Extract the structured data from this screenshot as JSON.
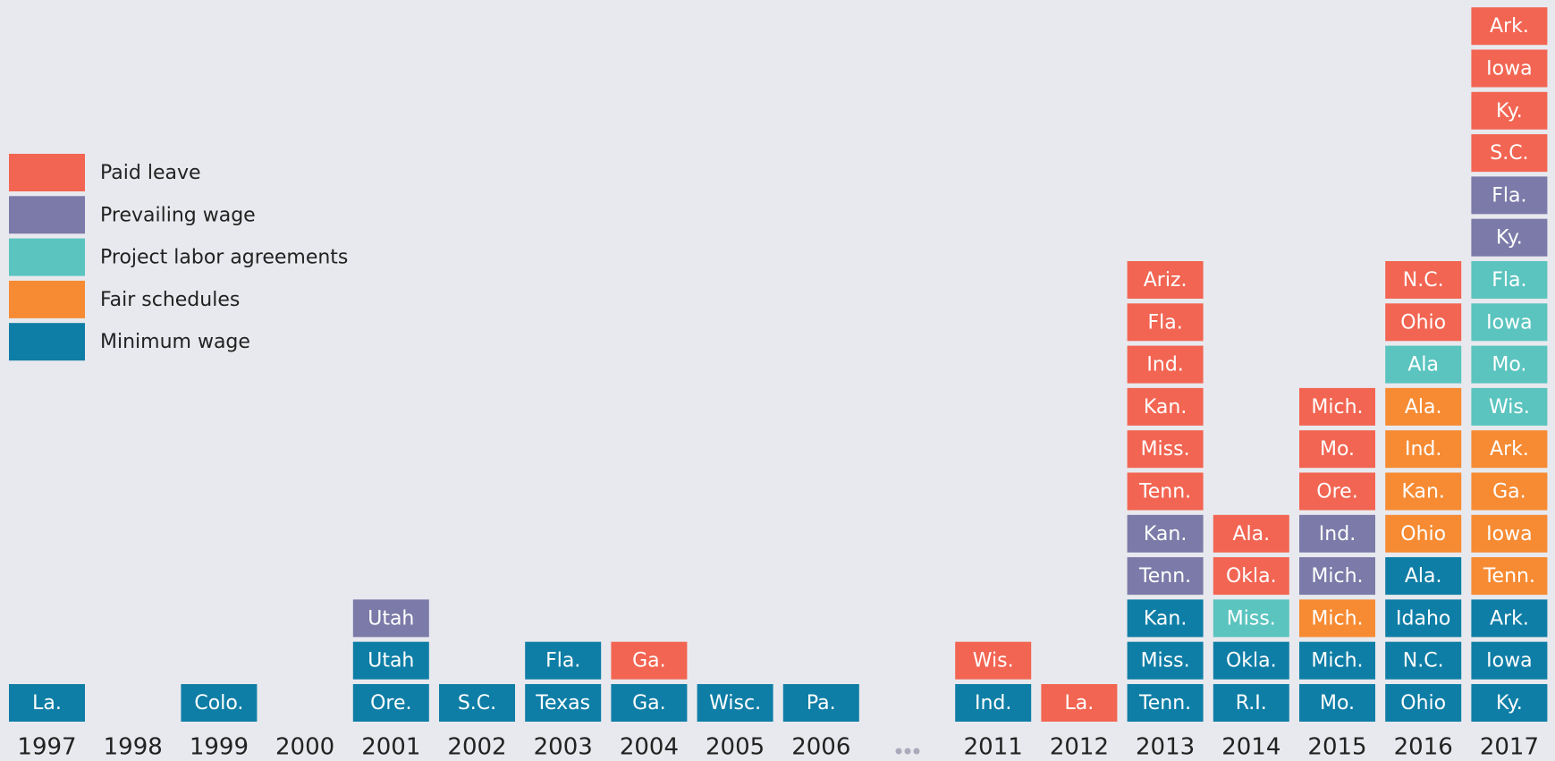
{
  "legend": [
    {
      "label": "Paid leave",
      "color": "#f26552"
    },
    {
      "label": "Prevailing wage",
      "color": "#7b7aa8"
    },
    {
      "label": "Project labor agreements",
      "color": "#5bc4bf"
    },
    {
      "label": "Fair schedules",
      "color": "#f68b33"
    },
    {
      "label": "Minimum wage",
      "color": "#0f7ea6"
    }
  ],
  "columns": [
    {
      "year": "1997",
      "stacks": [
        [],
        [],
        [],
        [],
        [
          "La."
        ]
      ]
    },
    {
      "year": "1998",
      "stacks": [
        [],
        [],
        [],
        [],
        []
      ]
    },
    {
      "year": "1999",
      "stacks": [
        [],
        [],
        [],
        [],
        [
          "Colo."
        ]
      ]
    },
    {
      "year": "2000",
      "stacks": [
        [],
        [],
        [],
        [],
        []
      ]
    },
    {
      "year": "2001",
      "stacks": [
        [],
        [
          "Utah"
        ],
        [],
        [],
        [
          "Ore.",
          "Utah"
        ]
      ]
    },
    {
      "year": "2002",
      "stacks": [
        [],
        [],
        [],
        [],
        [
          "S.C."
        ]
      ]
    },
    {
      "year": "2003",
      "stacks": [
        [],
        [],
        [],
        [],
        [
          "Texas",
          "Fla."
        ]
      ]
    },
    {
      "year": "2004",
      "stacks": [
        [
          "Ga."
        ],
        [],
        [],
        [],
        [
          "Ga."
        ]
      ]
    },
    {
      "year": "2005",
      "stacks": [
        [],
        [],
        [],
        [],
        [
          "Wisc."
        ]
      ]
    },
    {
      "year": "2006",
      "stacks": [
        [],
        [],
        [],
        [],
        [
          "Pa."
        ]
      ]
    },
    {
      "year": "2011",
      "stacks": [
        [
          "Wis."
        ],
        [],
        [],
        [],
        [
          "Ind."
        ]
      ]
    },
    {
      "year": "2012",
      "stacks": [
        [
          "La."
        ],
        [],
        [],
        [],
        []
      ]
    },
    {
      "year": "2013",
      "stacks": [
        [
          "Tenn.",
          "Miss.",
          "Kan.",
          "Ind.",
          "Fla.",
          "Ariz."
        ],
        [
          "Tenn.",
          "Kan."
        ],
        [],
        [],
        [
          "Tenn.",
          "Miss.",
          "Kan."
        ]
      ]
    },
    {
      "year": "2014",
      "stacks": [
        [
          "Okla.",
          "Ala."
        ],
        [],
        [
          "Miss."
        ],
        [],
        [
          "R.I.",
          "Okla."
        ]
      ]
    },
    {
      "year": "2015",
      "stacks": [
        [
          "Ore.",
          "Mo.",
          "Mich."
        ],
        [
          "Mich.",
          "Ind."
        ],
        [],
        [
          "Mich."
        ],
        [
          "Mo.",
          "Mich."
        ]
      ]
    },
    {
      "year": "2016",
      "stacks": [
        [
          "Ohio",
          "N.C."
        ],
        [],
        [
          "Ala"
        ],
        [
          "Ohio",
          "Kan.",
          "Ind.",
          "Ala."
        ],
        [
          "Ohio",
          "N.C.",
          "Idaho",
          "Ala."
        ]
      ]
    },
    {
      "year": "2017",
      "stacks": [
        [
          "S.C.",
          "Ky.",
          "Iowa",
          "Ark."
        ],
        [
          "Ky.",
          "Fla."
        ],
        [
          "Wis.",
          "Mo.",
          "Iowa",
          "Fla."
        ],
        [
          "Tenn.",
          "Iowa",
          "Ga.",
          "Ark."
        ],
        [
          "Ky.",
          "Iowa",
          "Ark."
        ]
      ]
    }
  ]
}
